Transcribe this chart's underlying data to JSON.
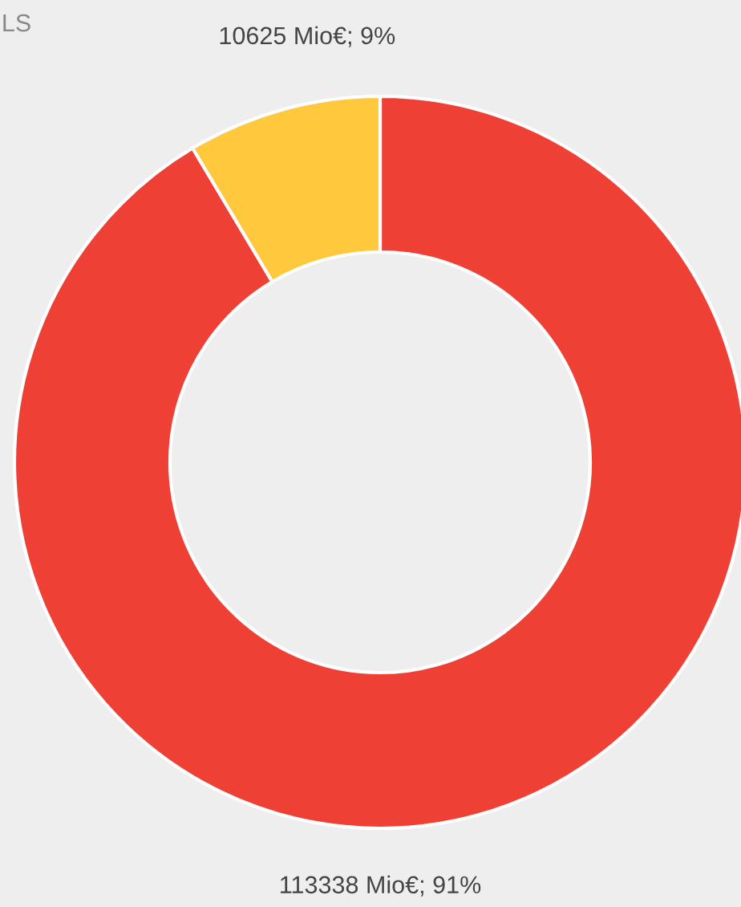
{
  "chart_data": {
    "type": "donut",
    "categories": [
      null,
      null
    ],
    "values": [
      113338,
      10625
    ],
    "colors": [
      "#ee4035",
      "#ffc83d"
    ],
    "value_labels": [
      "113338 Mio€; 91%",
      "10625 Mio€; 9%"
    ],
    "annotations": [
      "LS"
    ]
  }
}
